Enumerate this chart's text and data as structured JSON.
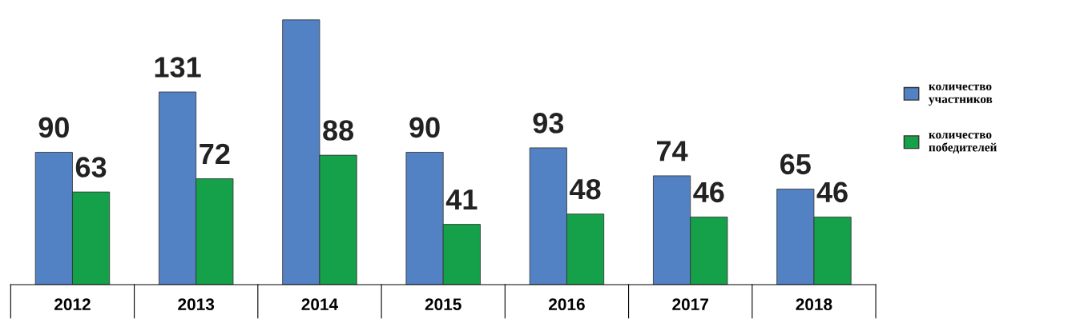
{
  "chart_data": {
    "type": "bar",
    "categories": [
      "2012",
      "2013",
      "2014",
      "2015",
      "2016",
      "2017",
      "2018"
    ],
    "series": [
      {
        "name": "количество участников",
        "color": "#5282c4",
        "values": [
          90,
          131,
          180,
          90,
          93,
          74,
          65
        ],
        "value_labels": [
          "90",
          "131",
          null,
          "90",
          "93",
          "74",
          "65"
        ]
      },
      {
        "name": "количество победителей",
        "color": "#15a04a",
        "values": [
          63,
          72,
          88,
          41,
          48,
          46,
          46
        ],
        "value_labels": [
          "63",
          "72",
          "88",
          "41",
          "48",
          "46",
          "46"
        ]
      }
    ],
    "legend": "right",
    "grid": false
  }
}
